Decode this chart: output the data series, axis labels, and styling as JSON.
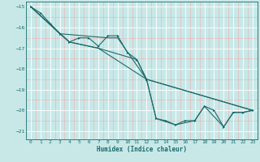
{
  "xlabel": "Humidex (Indice chaleur)",
  "background_color": "#c8e8e8",
  "grid_color_major": "#ffffff",
  "grid_color_minor": "#e8b8b8",
  "line_color": "#1a6b6b",
  "xlim": [
    -0.5,
    23.5
  ],
  "ylim": [
    -21.4,
    -14.75
  ],
  "xticks": [
    0,
    1,
    2,
    3,
    4,
    5,
    6,
    7,
    8,
    9,
    10,
    11,
    12,
    13,
    14,
    15,
    16,
    17,
    18,
    19,
    20,
    21,
    22,
    23
  ],
  "yticks": [
    -15,
    -16,
    -17,
    -18,
    -19,
    -20,
    -21
  ],
  "series1": [
    [
      0,
      -15.0
    ],
    [
      1,
      -15.3
    ],
    [
      2,
      -15.8
    ],
    [
      3,
      -16.3
    ],
    [
      4,
      -16.7
    ],
    [
      5,
      -16.5
    ],
    [
      6,
      -16.5
    ],
    [
      7,
      -16.9
    ],
    [
      8,
      -16.4
    ],
    [
      9,
      -16.4
    ],
    [
      10,
      -17.2
    ],
    [
      11,
      -17.55
    ],
    [
      12,
      -18.5
    ],
    [
      13,
      -20.4
    ],
    [
      14,
      -20.5
    ],
    [
      15,
      -20.7
    ],
    [
      16,
      -20.5
    ],
    [
      17,
      -20.5
    ],
    [
      18,
      -19.8
    ],
    [
      19,
      -20.0
    ],
    [
      20,
      -20.8
    ],
    [
      21,
      -20.1
    ],
    [
      22,
      -20.1
    ],
    [
      23,
      -20.0
    ]
  ],
  "series2": [
    [
      0,
      -15.0
    ],
    [
      3,
      -16.3
    ],
    [
      8,
      -16.5
    ],
    [
      9,
      -16.5
    ],
    [
      12,
      -18.5
    ],
    [
      23,
      -20.0
    ]
  ],
  "series3": [
    [
      0,
      -15.0
    ],
    [
      4,
      -16.7
    ],
    [
      7,
      -17.0
    ],
    [
      11,
      -17.55
    ],
    [
      12,
      -18.5
    ],
    [
      13,
      -20.4
    ],
    [
      15,
      -20.7
    ],
    [
      17,
      -20.5
    ],
    [
      18,
      -19.8
    ],
    [
      20,
      -20.8
    ],
    [
      21,
      -20.1
    ],
    [
      22,
      -20.1
    ],
    [
      23,
      -20.0
    ]
  ],
  "series4": [
    [
      0,
      -15.0
    ],
    [
      4,
      -16.7
    ],
    [
      7,
      -17.0
    ],
    [
      12,
      -18.5
    ],
    [
      23,
      -20.0
    ]
  ]
}
